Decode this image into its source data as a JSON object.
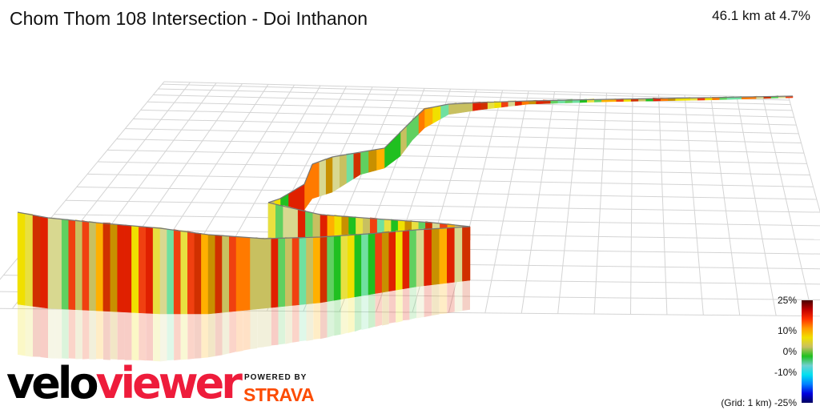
{
  "header": {
    "title": "Chom Thom 108 Intersection - Doi Inthanon",
    "summary": "46.1 km at 4.7%"
  },
  "legend": {
    "labels": [
      "25%",
      "10%",
      "0%",
      "-10%",
      "(Grid: 1 km) -25%"
    ],
    "gradient_colors": [
      "#4a0000",
      "#c00000",
      "#ff3000",
      "#ff9900",
      "#f0e000",
      "#c8c060",
      "#20c020",
      "#70d0d0",
      "#00e0f0",
      "#0080ff",
      "#0000e0",
      "#000060"
    ]
  },
  "branding": {
    "logo_part1": "velo",
    "logo_part2": "viewer",
    "powered_by": "POWERED BY",
    "strava": "STRAVA"
  }
}
